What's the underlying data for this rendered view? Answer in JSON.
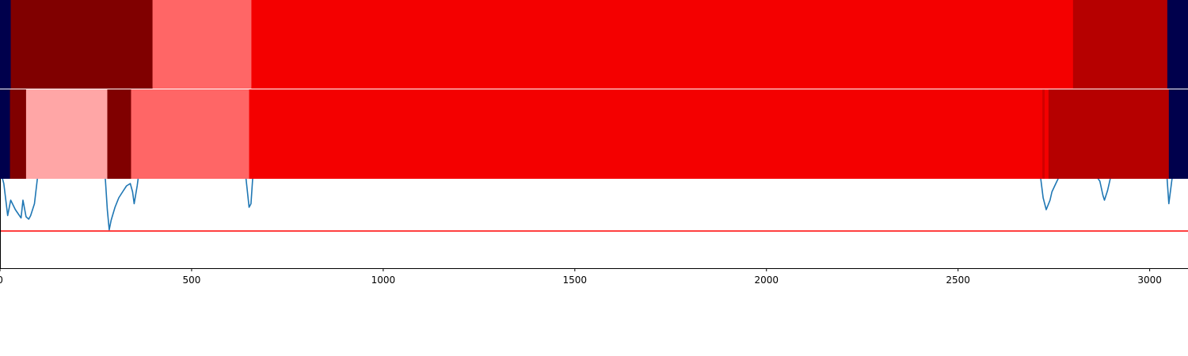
{
  "chart_data": [
    {
      "type": "heatmap",
      "orientation": "horizontal segmented bar",
      "xlim": [
        0,
        3100
      ],
      "segments": [
        {
          "start": 0,
          "end": 28,
          "color": "#00004c"
        },
        {
          "start": 28,
          "end": 398,
          "color": "#800000"
        },
        {
          "start": 398,
          "end": 656,
          "color": "#ff6666"
        },
        {
          "start": 656,
          "end": 2800,
          "color": "#f40000"
        },
        {
          "start": 2800,
          "end": 3046,
          "color": "#b60000"
        },
        {
          "start": 3046,
          "end": 3100,
          "color": "#00004c"
        }
      ]
    },
    {
      "type": "heatmap",
      "orientation": "horizontal segmented bar",
      "xlim": [
        0,
        3100
      ],
      "segments": [
        {
          "start": 0,
          "end": 26,
          "color": "#00004c"
        },
        {
          "start": 26,
          "end": 68,
          "color": "#800000"
        },
        {
          "start": 68,
          "end": 280,
          "color": "#ffa6a6"
        },
        {
          "start": 280,
          "end": 342,
          "color": "#800000"
        },
        {
          "start": 342,
          "end": 650,
          "color": "#ff6666"
        },
        {
          "start": 650,
          "end": 2720,
          "color": "#f40000"
        },
        {
          "start": 2720,
          "end": 2726,
          "color": "#d00000"
        },
        {
          "start": 2726,
          "end": 2736,
          "color": "#f40000"
        },
        {
          "start": 2736,
          "end": 3050,
          "color": "#b60000"
        },
        {
          "start": 3050,
          "end": 3100,
          "color": "#00004c"
        }
      ]
    },
    {
      "type": "line",
      "xlim": [
        0,
        3100
      ],
      "ylim": [
        0,
        1
      ],
      "x_ticks": [
        0,
        500,
        1000,
        1500,
        2000,
        2500,
        3000
      ],
      "series": [
        {
          "color": "#1f77b4",
          "x": [
            0,
            10,
            20,
            28,
            40,
            55,
            60,
            68,
            75,
            80,
            90,
            100,
            110,
            120,
            130,
            140,
            150,
            160,
            170,
            180,
            190,
            200,
            210,
            220,
            235,
            250,
            260,
            268,
            275,
            280,
            285,
            290,
            300,
            310,
            320,
            330,
            340,
            346,
            350,
            358,
            370,
            400,
            450,
            500,
            550,
            600,
            630,
            638,
            645,
            650,
            655,
            660,
            670,
            680,
            700,
            720,
            740,
            760,
            770,
            780,
            800,
            900,
            1000,
            1500,
            1900,
            1960,
            2000,
            2100,
            2200,
            2210,
            2230,
            2300,
            2400,
            2500,
            2530,
            2550,
            2570,
            2590,
            2620,
            2650,
            2680,
            2700,
            2705,
            2712,
            2715,
            2722,
            2730,
            2740,
            2745,
            2755,
            2770,
            2790,
            2800,
            2815,
            2830,
            2850,
            2870,
            2878,
            2882,
            2890,
            2900,
            2925,
            2950,
            2980,
            3010,
            3030,
            3040,
            3045,
            3050,
            3060,
            3075,
            3090,
            3100
          ],
          "y": [
            0.84,
            0.72,
            0.45,
            0.58,
            0.5,
            0.43,
            0.58,
            0.44,
            0.42,
            0.45,
            0.55,
            0.83,
            0.87,
            0.88,
            0.9,
            0.91,
            0.9,
            0.88,
            0.87,
            0.86,
            0.87,
            0.84,
            0.85,
            0.89,
            0.95,
            1.0,
            1.0,
            0.93,
            0.75,
            0.5,
            0.33,
            0.41,
            0.52,
            0.6,
            0.65,
            0.7,
            0.72,
            0.65,
            0.55,
            0.7,
            0.99,
            1.0,
            1.0,
            1.0,
            1.0,
            1.0,
            1.0,
            0.88,
            0.67,
            0.52,
            0.55,
            0.8,
            0.83,
            0.8,
            0.94,
            0.95,
            0.95,
            0.96,
            0.96,
            0.98,
            0.99,
            1.0,
            1.0,
            1.0,
            1.0,
            1.0,
            1.0,
            1.0,
            1.0,
            0.99,
            1.0,
            1.0,
            1.0,
            0.99,
            0.96,
            0.93,
            0.91,
            0.89,
            0.84,
            0.85,
            0.88,
            0.86,
            0.82,
            0.99,
            0.78,
            0.6,
            0.5,
            0.58,
            0.65,
            0.72,
            0.82,
            0.97,
            0.99,
            0.99,
            0.92,
            0.83,
            0.74,
            0.62,
            0.58,
            0.66,
            0.8,
            0.88,
            0.9,
            0.89,
            0.88,
            0.87,
            0.85,
            0.78,
            0.55,
            0.8,
            0.91,
            0.9,
            0.92
          ]
        },
        {
          "color": "#ff0000",
          "x": [
            0,
            3100
          ],
          "y": [
            0.32,
            0.32
          ]
        }
      ]
    }
  ]
}
